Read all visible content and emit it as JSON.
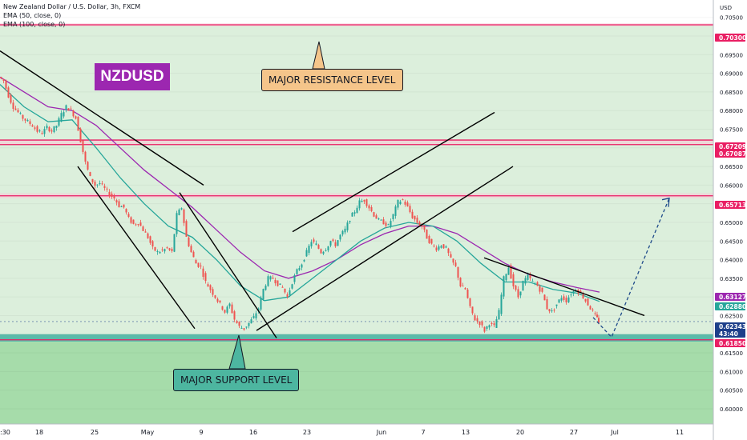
{
  "header": {
    "line1": "New Zealand Dollar / U.S. Dollar, 3h, FXCM",
    "line2": "EMA (50, close, 0)",
    "line3": "EMA (100, close, 0)"
  },
  "ticker_label": "NZDUSD",
  "annotations": {
    "resistance": "MAJOR RESISTANCE LEVEL",
    "support": "MAJOR SUPPORT LEVEL"
  },
  "colors": {
    "resistance_line": "#e91e63",
    "support_zone": "#26a69a",
    "ema50": "#26a69a",
    "ema100": "#9c27b0",
    "candle_up": "#26a69a",
    "candle_down": "#ef5350",
    "projection": "#1e4a8a"
  },
  "chart_data": {
    "type": "candlestick",
    "title": "New Zealand Dollar / U.S. Dollar, 3h, FXCM",
    "currency": "USD",
    "y_ticks": [
      0.705,
      0.7,
      0.695,
      0.69,
      0.685,
      0.68,
      0.675,
      0.67,
      0.665,
      0.66,
      0.655,
      0.65,
      0.645,
      0.64,
      0.635,
      0.63,
      0.625,
      0.62,
      0.615,
      0.61,
      0.605,
      0.6
    ],
    "x_ticks": [
      ":30",
      "18",
      "25",
      "May",
      "9",
      "16",
      "23",
      "Jun",
      "7",
      "13",
      "20",
      "27",
      "Jul",
      "11"
    ],
    "ylim": [
      0.5972,
      0.7088
    ],
    "price_tags": [
      {
        "value": "0.70300",
        "bg": "#e91e63"
      },
      {
        "value": "0.67209",
        "bg": "#e91e63"
      },
      {
        "value": "0.67087",
        "bg": "#e91e63"
      },
      {
        "value": "0.65713",
        "bg": "#e91e63"
      },
      {
        "value": "0.63127",
        "bg": "#9c27b0"
      },
      {
        "value": "0.62880",
        "bg": "#26a69a"
      },
      {
        "value": "0.62343",
        "bg": "#1e3f8a"
      },
      {
        "value": "43:40",
        "bg": "#1e3f8a"
      },
      {
        "value": "0.61850",
        "bg": "#e91e63"
      }
    ],
    "horizontal_levels": [
      0.703,
      0.67209,
      0.67087,
      0.65713,
      0.6185
    ],
    "support_zone": [
      0.618,
      0.62
    ],
    "price_path": [
      [
        0,
        0.689
      ],
      [
        6,
        0.688
      ],
      [
        12,
        0.684
      ],
      [
        18,
        0.681
      ],
      [
        24,
        0.6795
      ],
      [
        30,
        0.678
      ],
      [
        36,
        0.677
      ],
      [
        42,
        0.676
      ],
      [
        48,
        0.6745
      ],
      [
        54,
        0.674
      ],
      [
        60,
        0.6755
      ],
      [
        66,
        0.6745
      ],
      [
        72,
        0.676
      ],
      [
        78,
        0.679
      ],
      [
        84,
        0.681
      ],
      [
        90,
        0.68
      ],
      [
        96,
        0.678
      ],
      [
        102,
        0.672
      ],
      [
        108,
        0.666
      ],
      [
        114,
        0.662
      ],
      [
        120,
        0.66
      ],
      [
        126,
        0.6605
      ],
      [
        132,
        0.659
      ],
      [
        138,
        0.6575
      ],
      [
        144,
        0.6565
      ],
      [
        150,
        0.6545
      ],
      [
        156,
        0.654
      ],
      [
        162,
        0.651
      ],
      [
        168,
        0.6495
      ],
      [
        174,
        0.65
      ],
      [
        180,
        0.648
      ],
      [
        186,
        0.646
      ],
      [
        192,
        0.643
      ],
      [
        198,
        0.642
      ],
      [
        204,
        0.6425
      ],
      [
        210,
        0.643
      ],
      [
        216,
        0.642
      ],
      [
        222,
        0.652
      ],
      [
        228,
        0.654
      ],
      [
        234,
        0.646
      ],
      [
        240,
        0.642
      ],
      [
        246,
        0.639
      ],
      [
        252,
        0.638
      ],
      [
        258,
        0.634
      ],
      [
        264,
        0.632
      ],
      [
        270,
        0.63
      ],
      [
        276,
        0.628
      ],
      [
        282,
        0.626
      ],
      [
        288,
        0.628
      ],
      [
        294,
        0.624
      ],
      [
        300,
        0.622
      ],
      [
        306,
        0.6215
      ],
      [
        312,
        0.623
      ],
      [
        318,
        0.6245
      ],
      [
        324,
        0.627
      ],
      [
        330,
        0.632
      ],
      [
        336,
        0.635
      ],
      [
        342,
        0.635
      ],
      [
        348,
        0.6335
      ],
      [
        354,
        0.6325
      ],
      [
        360,
        0.63
      ],
      [
        366,
        0.634
      ],
      [
        372,
        0.637
      ],
      [
        378,
        0.639
      ],
      [
        384,
        0.642
      ],
      [
        390,
        0.645
      ],
      [
        396,
        0.644
      ],
      [
        402,
        0.642
      ],
      [
        408,
        0.643
      ],
      [
        414,
        0.645
      ],
      [
        420,
        0.644
      ],
      [
        426,
        0.6465
      ],
      [
        432,
        0.648
      ],
      [
        438,
        0.651
      ],
      [
        444,
        0.653
      ],
      [
        450,
        0.6555
      ],
      [
        456,
        0.656
      ],
      [
        462,
        0.654
      ],
      [
        468,
        0.652
      ],
      [
        474,
        0.6505
      ],
      [
        480,
        0.65
      ],
      [
        486,
        0.649
      ],
      [
        492,
        0.652
      ],
      [
        498,
        0.6555
      ],
      [
        504,
        0.656
      ],
      [
        510,
        0.654
      ],
      [
        516,
        0.6515
      ],
      [
        522,
        0.65
      ],
      [
        528,
        0.649
      ],
      [
        534,
        0.646
      ],
      [
        540,
        0.644
      ],
      [
        546,
        0.643
      ],
      [
        552,
        0.644
      ],
      [
        558,
        0.643
      ],
      [
        564,
        0.64
      ],
      [
        570,
        0.638
      ],
      [
        576,
        0.633
      ],
      [
        582,
        0.632
      ],
      [
        588,
        0.627
      ],
      [
        594,
        0.624
      ],
      [
        600,
        0.623
      ],
      [
        606,
        0.621
      ],
      [
        612,
        0.623
      ],
      [
        618,
        0.622
      ],
      [
        624,
        0.626
      ],
      [
        630,
        0.635
      ],
      [
        636,
        0.638
      ],
      [
        642,
        0.633
      ],
      [
        648,
        0.63
      ],
      [
        654,
        0.634
      ],
      [
        660,
        0.6355
      ],
      [
        666,
        0.634
      ],
      [
        672,
        0.633
      ],
      [
        678,
        0.631
      ],
      [
        684,
        0.627
      ],
      [
        690,
        0.626
      ],
      [
        696,
        0.628
      ],
      [
        702,
        0.63
      ],
      [
        708,
        0.629
      ],
      [
        714,
        0.631
      ],
      [
        720,
        0.632
      ],
      [
        726,
        0.631
      ],
      [
        732,
        0.629
      ],
      [
        738,
        0.627
      ],
      [
        744,
        0.625
      ],
      [
        748,
        0.6234
      ]
    ],
    "ema50": [
      [
        0,
        0.687
      ],
      [
        30,
        0.681
      ],
      [
        60,
        0.677
      ],
      [
        90,
        0.6775
      ],
      [
        120,
        0.67
      ],
      [
        150,
        0.662
      ],
      [
        180,
        0.655
      ],
      [
        210,
        0.649
      ],
      [
        240,
        0.646
      ],
      [
        270,
        0.64
      ],
      [
        300,
        0.633
      ],
      [
        330,
        0.629
      ],
      [
        360,
        0.63
      ],
      [
        390,
        0.635
      ],
      [
        420,
        0.64
      ],
      [
        450,
        0.645
      ],
      [
        480,
        0.6485
      ],
      [
        510,
        0.65
      ],
      [
        540,
        0.649
      ],
      [
        570,
        0.645
      ],
      [
        600,
        0.639
      ],
      [
        630,
        0.634
      ],
      [
        660,
        0.634
      ],
      [
        690,
        0.632
      ],
      [
        720,
        0.631
      ],
      [
        748,
        0.6288
      ]
    ],
    "ema100": [
      [
        0,
        0.689
      ],
      [
        30,
        0.685
      ],
      [
        60,
        0.681
      ],
      [
        90,
        0.68
      ],
      [
        120,
        0.676
      ],
      [
        150,
        0.67
      ],
      [
        180,
        0.664
      ],
      [
        210,
        0.659
      ],
      [
        240,
        0.654
      ],
      [
        270,
        0.648
      ],
      [
        300,
        0.642
      ],
      [
        330,
        0.637
      ],
      [
        360,
        0.635
      ],
      [
        390,
        0.637
      ],
      [
        420,
        0.64
      ],
      [
        450,
        0.644
      ],
      [
        480,
        0.647
      ],
      [
        510,
        0.649
      ],
      [
        540,
        0.649
      ],
      [
        570,
        0.647
      ],
      [
        600,
        0.643
      ],
      [
        630,
        0.639
      ],
      [
        660,
        0.636
      ],
      [
        690,
        0.634
      ],
      [
        720,
        0.6325
      ],
      [
        748,
        0.6313
      ]
    ],
    "trendlines": [
      [
        [
          0,
          0.696
        ],
        [
          254,
          0.66
        ]
      ],
      [
        [
          97,
          0.665
        ],
        [
          243,
          0.6215
        ]
      ],
      [
        [
          224,
          0.658
        ],
        [
          345,
          0.619
        ]
      ],
      [
        [
          320,
          0.621
        ],
        [
          640,
          0.665
        ]
      ],
      [
        [
          365,
          0.6475
        ],
        [
          617,
          0.6795
        ]
      ],
      [
        [
          604,
          0.6405
        ],
        [
          804,
          0.625
        ]
      ]
    ],
    "projection": [
      [
        740,
        0.6245
      ],
      [
        763,
        0.6192
      ],
      [
        835,
        0.6565
      ]
    ]
  }
}
